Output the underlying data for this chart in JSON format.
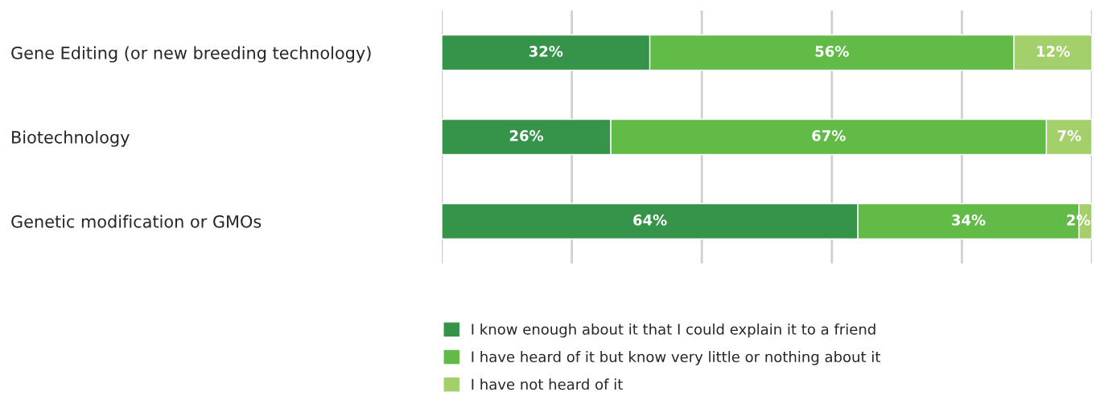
{
  "chart_data": {
    "type": "bar",
    "orientation": "horizontal",
    "stacked": true,
    "categories": [
      "Gene Editing (or new breeding technology)",
      "Biotechnology",
      "Genetic modification or GMOs"
    ],
    "series": [
      {
        "name": "I know enough about it that I could explain it to a friend",
        "color": "#36934a",
        "values": [
          32,
          26,
          64
        ],
        "value_labels": [
          "32%",
          "26%",
          "64%"
        ]
      },
      {
        "name": "I have heard of it but know very little or nothing about it",
        "color": "#62bb47",
        "values": [
          56,
          67,
          34
        ],
        "value_labels": [
          "56%",
          "67%",
          "34%"
        ]
      },
      {
        "name": "I have not heard of it",
        "color": "#a3d06a",
        "values": [
          12,
          7,
          2
        ],
        "value_labels": [
          "12%",
          "7%",
          "2%"
        ]
      }
    ],
    "grid": "x",
    "legend": "bottom",
    "tick_labels": "y"
  }
}
